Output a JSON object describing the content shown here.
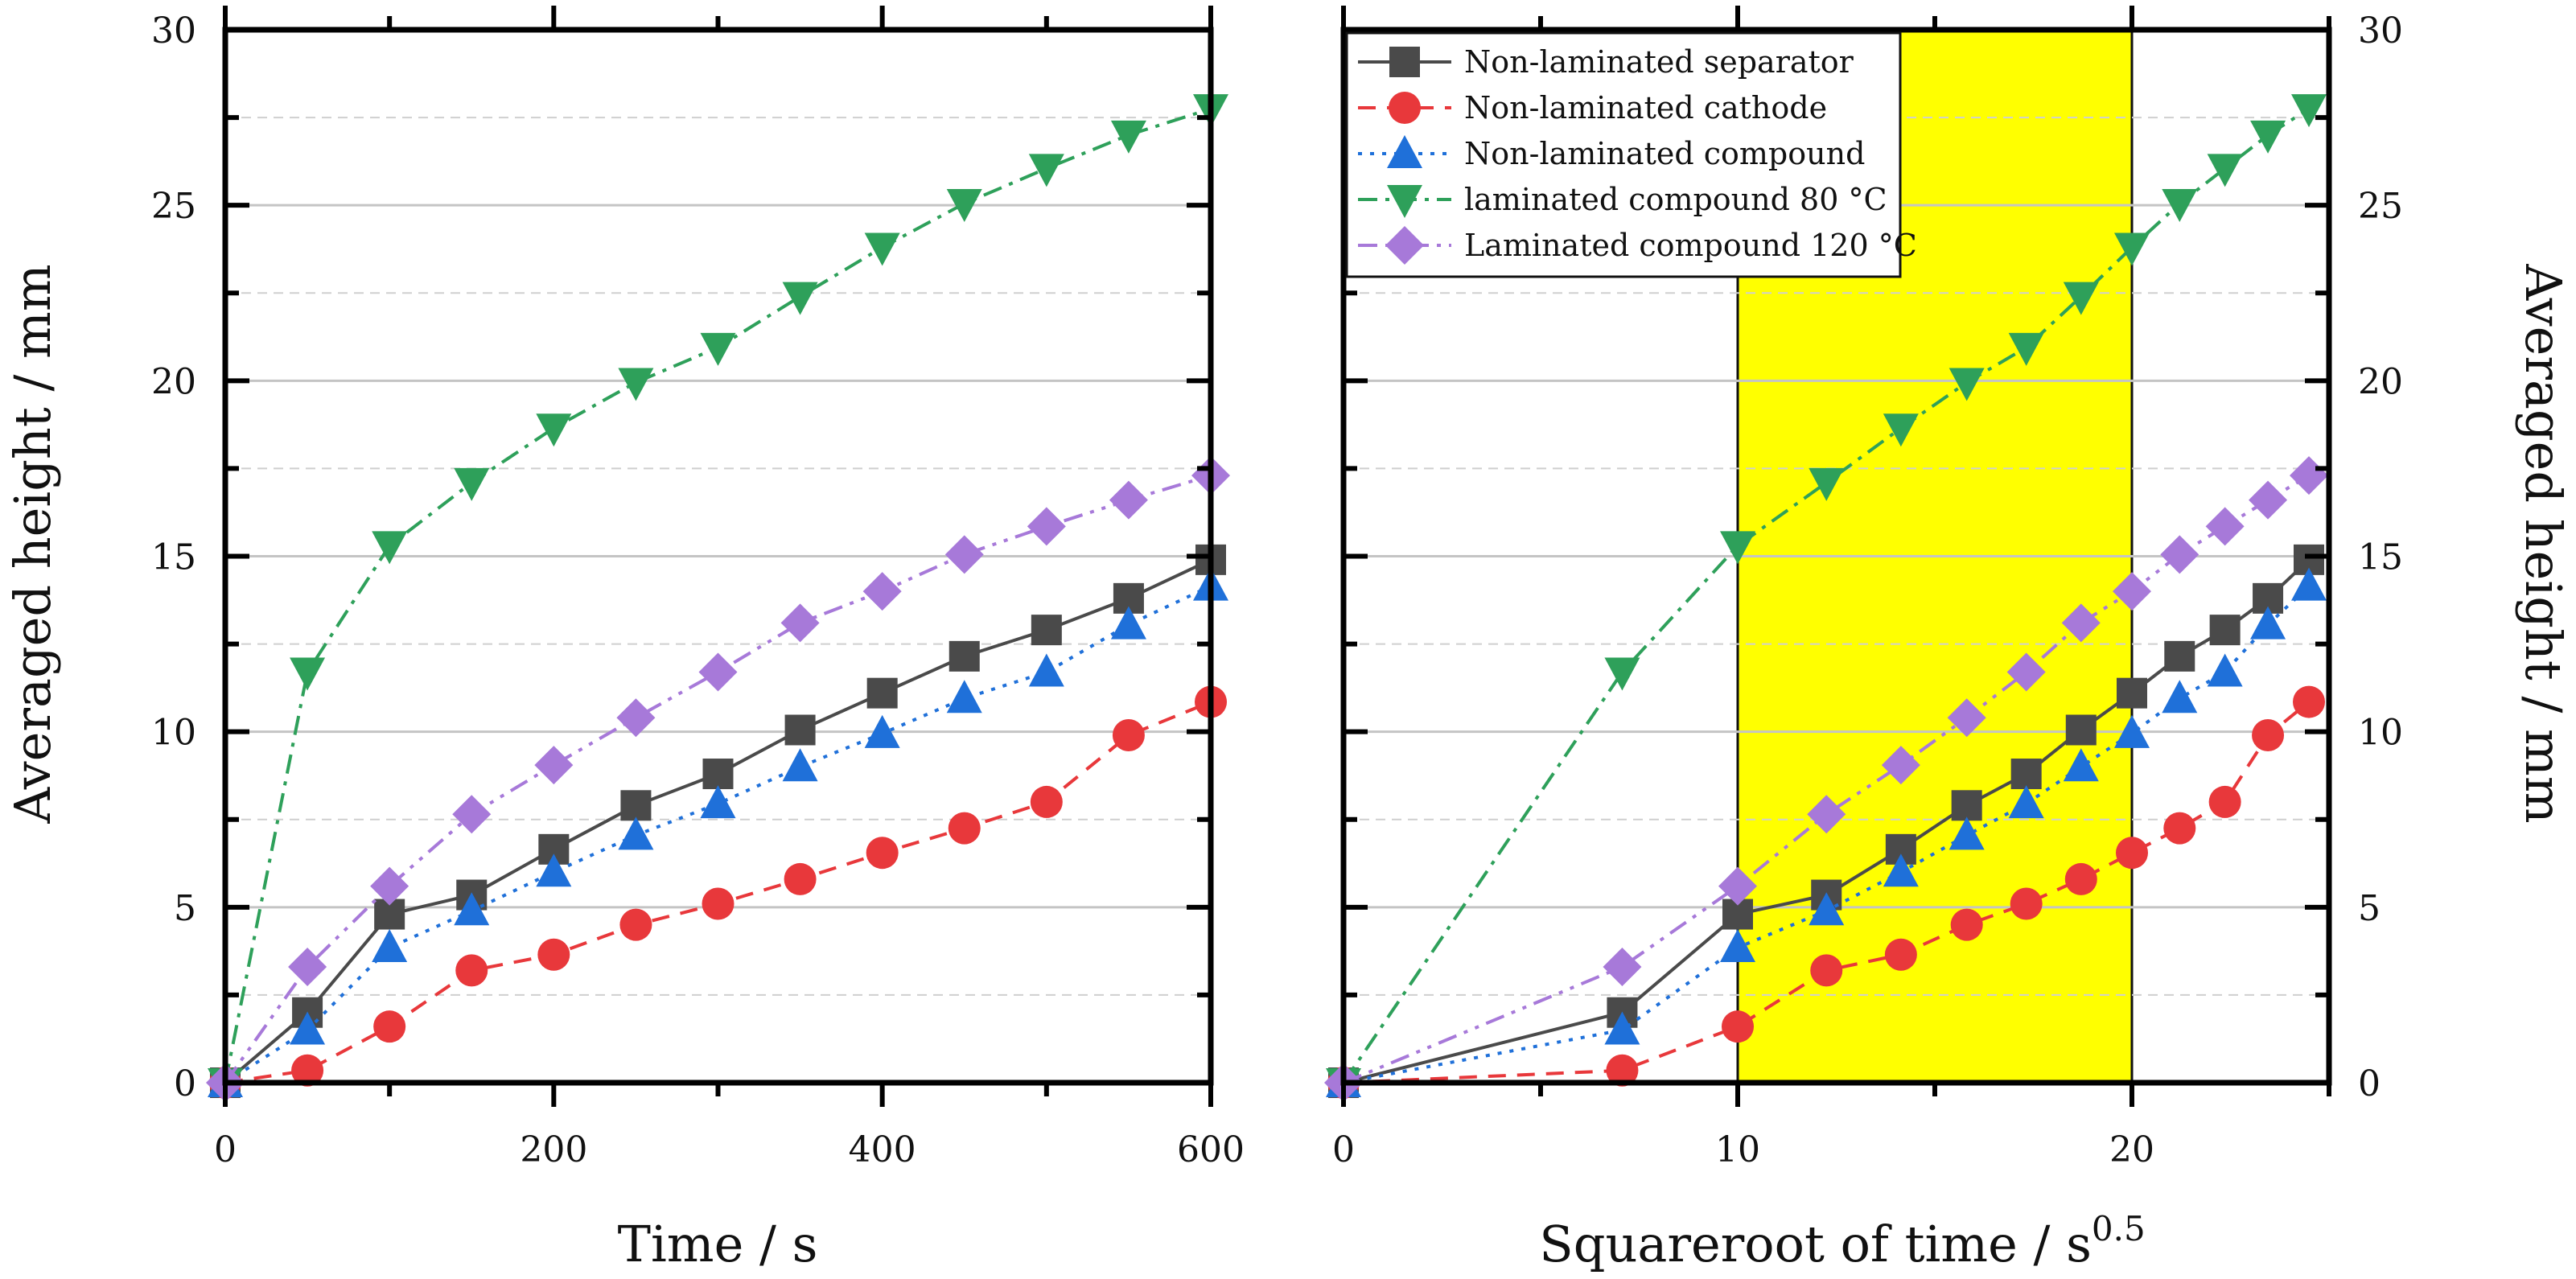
{
  "chart_data": [
    {
      "type": "line",
      "xlabel": "Time / s",
      "ylabel": "Averaged height / mm",
      "xlim": [
        0,
        600
      ],
      "ylim": [
        0,
        30
      ],
      "xticks": [
        "0",
        "200",
        "400",
        "600"
      ],
      "yticks": [
        "0",
        "5",
        "10",
        "15",
        "20",
        "25",
        "30"
      ],
      "grid": "horizontal, solid at major ticks and dashed at minor ticks",
      "x": [
        0,
        50,
        100,
        150,
        200,
        250,
        300,
        350,
        400,
        450,
        500,
        550,
        600
      ],
      "series": [
        {
          "name": "Non-laminated separator",
          "color": "#4a4a4a",
          "marker": "square",
          "line": "solid",
          "values": [
            0,
            2.0,
            4.8,
            5.35,
            6.65,
            7.9,
            8.8,
            10.05,
            11.1,
            12.15,
            12.9,
            13.8,
            14.9
          ]
        },
        {
          "name": "Non-laminated cathode",
          "color": "#e8383b",
          "marker": "circle",
          "line": "dashed",
          "values": [
            0,
            0.35,
            1.6,
            3.2,
            3.65,
            4.5,
            5.1,
            5.8,
            6.55,
            7.25,
            8.0,
            9.9,
            10.85
          ]
        },
        {
          "name": "Non-laminated compound",
          "color": "#1f70d9",
          "marker": "triangle-up",
          "line": "dotted",
          "values": [
            0,
            1.5,
            3.85,
            4.9,
            6.0,
            7.05,
            7.95,
            9.0,
            9.95,
            10.95,
            11.7,
            13.05,
            14.15
          ]
        },
        {
          "name": "laminated compound 80 °C",
          "color": "#2ea05a",
          "marker": "triangle-down",
          "line": "dash-dot",
          "values": [
            0,
            11.7,
            15.3,
            17.1,
            18.65,
            19.95,
            20.95,
            22.4,
            23.8,
            25.05,
            26.05,
            27.0,
            27.75
          ]
        },
        {
          "name": "Laminated compound 120 °C",
          "color": "#a779d9",
          "marker": "diamond",
          "line": "dash-dot-dot",
          "values": [
            0,
            3.3,
            5.6,
            7.65,
            9.05,
            10.4,
            11.7,
            13.1,
            14.0,
            15.05,
            15.85,
            16.6,
            17.3
          ]
        }
      ]
    },
    {
      "type": "line",
      "xlabel": "Squareroot of time / s",
      "xlabel_superscript": "0.5",
      "ylabel": "Averaged height / mm",
      "y_axis_position": "right",
      "xlim": [
        0,
        25
      ],
      "ylim": [
        0,
        30
      ],
      "xticks": [
        "0",
        "10",
        "20"
      ],
      "yticks": [
        "0",
        "5",
        "10",
        "15",
        "20",
        "25",
        "30"
      ],
      "grid": "horizontal, solid at major ticks and dashed at minor ticks",
      "highlight_band": {
        "x_from": 10,
        "x_to": 20,
        "color": "#ffff00"
      },
      "legend": {
        "position": "top-left"
      },
      "x": [
        0,
        7.07,
        10,
        12.25,
        14.14,
        15.81,
        17.32,
        18.71,
        20,
        21.21,
        22.36,
        23.45,
        24.49
      ],
      "series": [
        {
          "name": "Non-laminated separator",
          "color": "#4a4a4a",
          "marker": "square",
          "line": "solid",
          "values": [
            0,
            2.0,
            4.8,
            5.35,
            6.65,
            7.9,
            8.8,
            10.05,
            11.1,
            12.15,
            12.9,
            13.8,
            14.9
          ]
        },
        {
          "name": "Non-laminated cathode",
          "color": "#e8383b",
          "marker": "circle",
          "line": "dashed",
          "values": [
            0,
            0.35,
            1.6,
            3.2,
            3.65,
            4.5,
            5.1,
            5.8,
            6.55,
            7.25,
            8.0,
            9.9,
            10.85
          ]
        },
        {
          "name": "Non-laminated compound",
          "color": "#1f70d9",
          "marker": "triangle-up",
          "line": "dotted",
          "values": [
            0,
            1.5,
            3.85,
            4.9,
            6.0,
            7.05,
            7.95,
            9.0,
            9.95,
            10.95,
            11.7,
            13.05,
            14.15
          ]
        },
        {
          "name": "laminated compound 80 °C",
          "color": "#2ea05a",
          "marker": "triangle-down",
          "line": "dash-dot",
          "values": [
            0,
            11.7,
            15.3,
            17.1,
            18.65,
            19.95,
            20.95,
            22.4,
            23.8,
            25.05,
            26.05,
            27.0,
            27.75
          ]
        },
        {
          "name": "Laminated compound 120 °C",
          "color": "#a779d9",
          "marker": "diamond",
          "line": "dash-dot-dot",
          "values": [
            0,
            3.3,
            5.6,
            7.65,
            9.05,
            10.4,
            11.7,
            13.1,
            14.0,
            15.05,
            15.85,
            16.6,
            17.3
          ]
        }
      ]
    }
  ]
}
